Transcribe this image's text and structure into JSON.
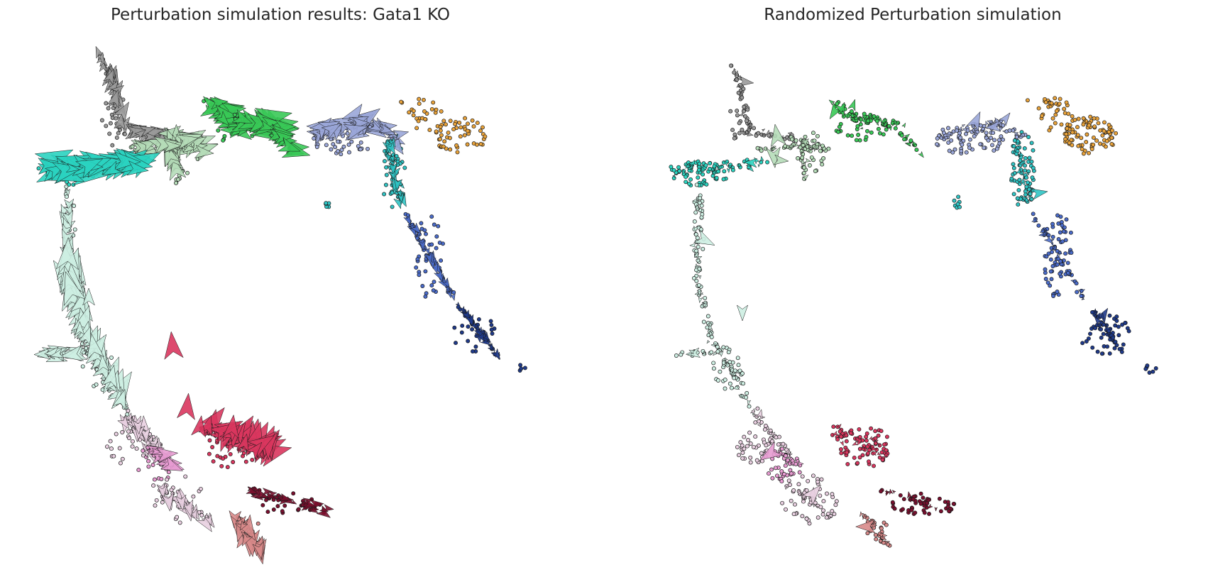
{
  "chart_data": [
    {
      "type": "scatter",
      "subtype": "embedding-with-vector-field",
      "title": "Perturbation simulation results: Gata1 KO",
      "xlabel": "",
      "ylabel": "",
      "axes_visible": false,
      "grid": false,
      "legend": "none",
      "vector_field": true,
      "mode": "perturbed",
      "cluster_colors": {
        "megakaryocyte_progenitor": "#e8a23a",
        "granulocyte": "#9aa6d8",
        "monocyte_progenitor": "#2fc4c4",
        "monocyte": "#4a6bc9",
        "dendritic": "#1f3a8a",
        "multipotent": "#2ad3c0",
        "gmp_early": "#b5dcb8",
        "neutrophil_early": "#39c957",
        "grey": "#9a9a9a",
        "erythroid_progenitor": "#cdeee2",
        "erythroid_mid": "#e8cfe0",
        "erythroid_pink": "#e79bd1",
        "erythroid_late": "#d9365e",
        "erythroid_dark": "#7a0f2e",
        "salmon": "#d88a8a"
      }
    },
    {
      "type": "scatter",
      "subtype": "embedding-with-vector-field",
      "title": "Randomized Perturbation simulation",
      "xlabel": "",
      "ylabel": "",
      "axes_visible": false,
      "grid": false,
      "legend": "none",
      "vector_field": true,
      "mode": "randomized"
    }
  ]
}
